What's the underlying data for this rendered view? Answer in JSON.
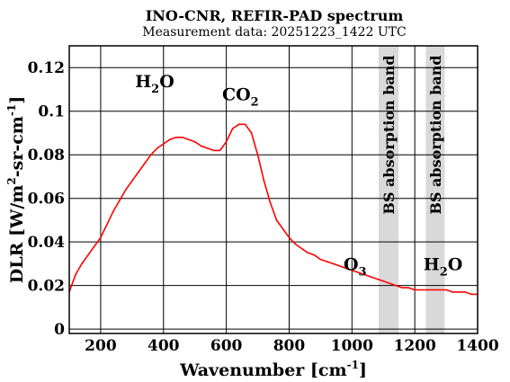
{
  "chart_data": {
    "type": "line",
    "title": "INO-CNR, REFIR-PAD spectrum",
    "subtitle": "Measurement data: 20251223_1422 UTC",
    "xlabel": {
      "main": "Wavenumber [cm",
      "sup": "-1",
      "close": "]"
    },
    "ylabel": {
      "a": "DLR [W/m",
      "sup1": "2",
      "b": "-sr-cm",
      "sup2": "-1",
      "c": "]"
    },
    "xlim": [
      100,
      1400
    ],
    "ylim": [
      -0.002,
      0.13
    ],
    "xticks": [
      "200",
      "400",
      "600",
      "800",
      "1000",
      "1200",
      "1400"
    ],
    "xtick_values": [
      200,
      400,
      600,
      800,
      1000,
      1200,
      1400
    ],
    "yticks": [
      "0",
      "0.02",
      "0.04",
      "0.06",
      "0.08",
      "0.1",
      "0.12"
    ],
    "ytick_values": [
      0,
      0.02,
      0.04,
      0.06,
      0.08,
      0.1,
      0.12
    ],
    "grid": true,
    "line_color": "#ff0000",
    "band_color": "#d9d9d9",
    "bands": [
      {
        "x": [
          1085,
          1148
        ],
        "label": "BS absorption band"
      },
      {
        "x": [
          1235,
          1295
        ],
        "label": "BS absorption band"
      }
    ],
    "annotations": [
      {
        "x": 372,
        "y": 0.111,
        "text": "H",
        "sub": "2",
        "tail": "O"
      },
      {
        "x": 645,
        "y": 0.105,
        "text": "CO",
        "sub": "2",
        "tail": ""
      },
      {
        "x": 1010,
        "y": 0.027,
        "text": "O",
        "sub": "3",
        "tail": ""
      },
      {
        "x": 1290,
        "y": 0.027,
        "text": "H",
        "sub": "2",
        "tail": "O"
      }
    ],
    "series": [
      {
        "x": [
          100,
          120,
          140,
          160,
          180,
          200,
          220,
          240,
          260,
          280,
          300,
          320,
          340,
          360,
          380,
          400,
          420,
          440,
          460,
          480,
          500,
          520,
          540,
          560,
          580,
          600,
          620,
          640,
          660,
          680,
          700,
          720,
          740,
          760,
          780,
          800,
          820,
          840,
          860,
          880,
          900,
          920,
          940,
          960,
          980,
          1000,
          1020,
          1040,
          1060,
          1080,
          1100,
          1120,
          1140,
          1160,
          1180,
          1200,
          1220,
          1240,
          1260,
          1280,
          1300,
          1320,
          1340,
          1360,
          1380,
          1400
        ],
        "y": [
          0.017,
          0.025,
          0.03,
          0.034,
          0.038,
          0.042,
          0.048,
          0.054,
          0.059,
          0.064,
          0.068,
          0.072,
          0.076,
          0.08,
          0.083,
          0.085,
          0.087,
          0.088,
          0.088,
          0.087,
          0.086,
          0.084,
          0.083,
          0.082,
          0.082,
          0.086,
          0.092,
          0.094,
          0.094,
          0.09,
          0.08,
          0.068,
          0.058,
          0.05,
          0.046,
          0.042,
          0.039,
          0.037,
          0.035,
          0.034,
          0.032,
          0.031,
          0.03,
          0.029,
          0.028,
          0.027,
          0.026,
          0.025,
          0.024,
          0.023,
          0.022,
          0.021,
          0.02,
          0.019,
          0.019,
          0.018,
          0.018,
          0.018,
          0.018,
          0.018,
          0.018,
          0.017,
          0.017,
          0.017,
          0.016,
          0.016
        ]
      }
    ]
  }
}
